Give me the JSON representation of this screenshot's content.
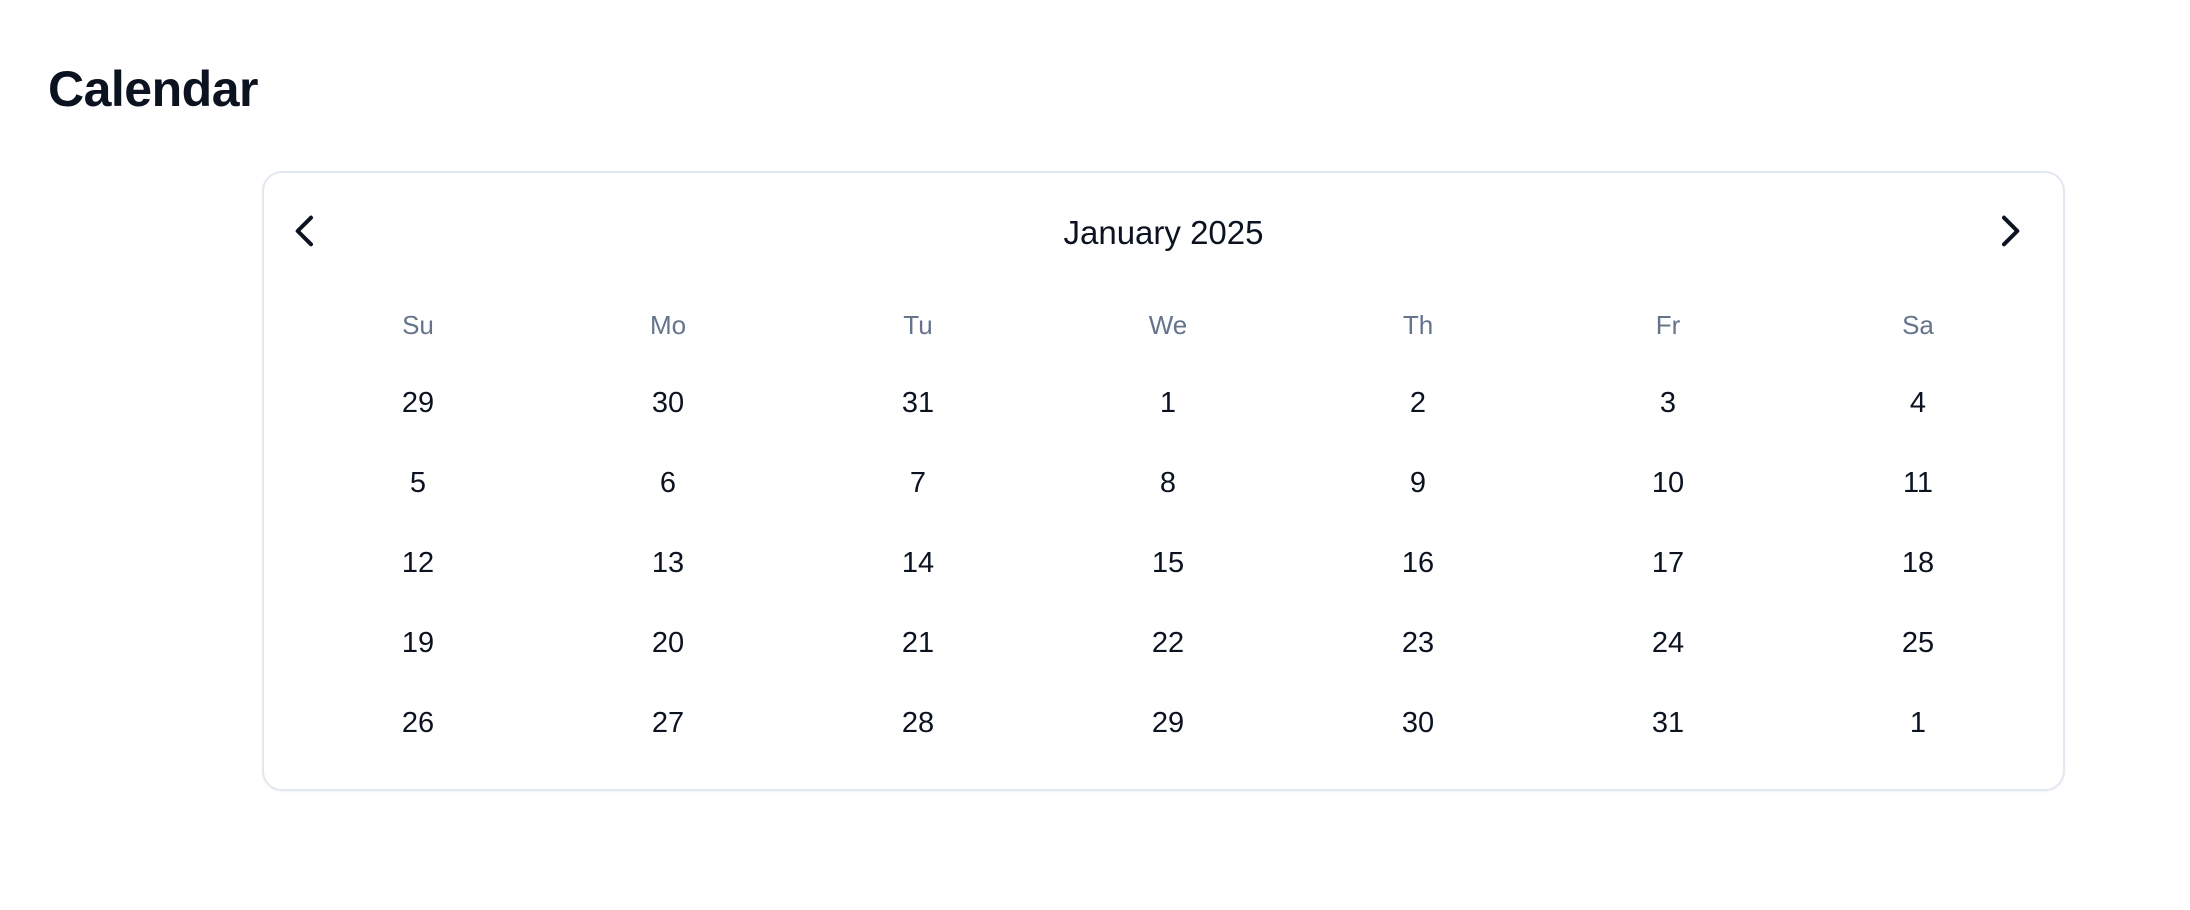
{
  "page": {
    "title": "Calendar"
  },
  "calendar": {
    "month_label": "January 2025",
    "prev_icon": "chevron-left-icon",
    "next_icon": "chevron-right-icon",
    "weekdays": [
      "Su",
      "Mo",
      "Tu",
      "We",
      "Th",
      "Fr",
      "Sa"
    ],
    "weeks": [
      [
        "29",
        "30",
        "31",
        "1",
        "2",
        "3",
        "4"
      ],
      [
        "5",
        "6",
        "7",
        "8",
        "9",
        "10",
        "11"
      ],
      [
        "12",
        "13",
        "14",
        "15",
        "16",
        "17",
        "18"
      ],
      [
        "19",
        "20",
        "21",
        "22",
        "23",
        "24",
        "25"
      ],
      [
        "26",
        "27",
        "28",
        "29",
        "30",
        "31",
        "1"
      ]
    ]
  },
  "colors": {
    "text": "#0b1220",
    "weekday_text": "#64748b",
    "border": "#e2e8f0",
    "background": "#ffffff"
  }
}
